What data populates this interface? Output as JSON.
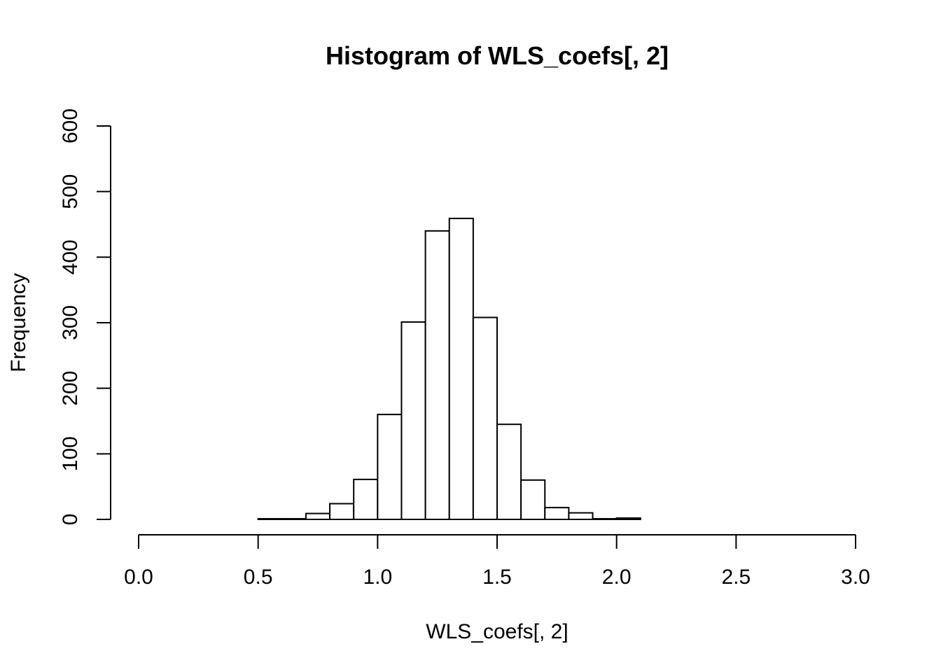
{
  "chart_data": {
    "type": "bar",
    "title": "Histogram of WLS_coefs[, 2]",
    "xlabel": "WLS_coefs[, 2]",
    "ylabel": "Frequency",
    "xlim": [
      0,
      3
    ],
    "ylim": [
      0,
      600
    ],
    "x_ticks": [
      "0.0",
      "0.5",
      "1.0",
      "1.5",
      "2.0",
      "2.5",
      "3.0"
    ],
    "y_ticks": [
      "0",
      "100",
      "200",
      "300",
      "400",
      "500",
      "600"
    ],
    "bins": [
      {
        "from": 0.5,
        "to": 0.6,
        "count": 1
      },
      {
        "from": 0.6,
        "to": 0.7,
        "count": 1
      },
      {
        "from": 0.7,
        "to": 0.8,
        "count": 9
      },
      {
        "from": 0.8,
        "to": 0.9,
        "count": 24
      },
      {
        "from": 0.9,
        "to": 1.0,
        "count": 61
      },
      {
        "from": 1.0,
        "to": 1.1,
        "count": 160
      },
      {
        "from": 1.1,
        "to": 1.2,
        "count": 301
      },
      {
        "from": 1.2,
        "to": 1.3,
        "count": 440
      },
      {
        "from": 1.3,
        "to": 1.4,
        "count": 459
      },
      {
        "from": 1.4,
        "to": 1.5,
        "count": 308
      },
      {
        "from": 1.5,
        "to": 1.6,
        "count": 145
      },
      {
        "from": 1.6,
        "to": 1.7,
        "count": 60
      },
      {
        "from": 1.7,
        "to": 1.8,
        "count": 18
      },
      {
        "from": 1.8,
        "to": 1.9,
        "count": 10
      },
      {
        "from": 1.9,
        "to": 2.0,
        "count": 1
      },
      {
        "from": 2.0,
        "to": 2.1,
        "count": 2
      }
    ],
    "grid": false,
    "bar_fill": "#ffffff",
    "bar_stroke": "#000000"
  }
}
